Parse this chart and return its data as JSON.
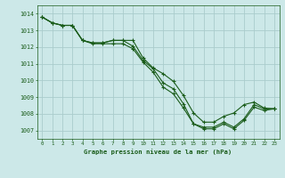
{
  "bg_color": "#cce8e8",
  "grid_color": "#aacccc",
  "line_color": "#1a5c1a",
  "ylim": [
    1006.5,
    1014.5
  ],
  "xlim": [
    -0.5,
    23.5
  ],
  "yticks": [
    1007,
    1008,
    1009,
    1010,
    1011,
    1012,
    1013,
    1014
  ],
  "xticks": [
    0,
    1,
    2,
    3,
    4,
    5,
    6,
    7,
    8,
    9,
    10,
    11,
    12,
    13,
    14,
    15,
    16,
    17,
    18,
    19,
    20,
    21,
    22,
    23
  ],
  "title": "Graphe pression niveau de la mer (hPa)",
  "line1": [
    1013.8,
    1013.45,
    1013.3,
    1013.3,
    1012.4,
    1012.25,
    1012.25,
    1012.4,
    1012.4,
    1012.05,
    1011.2,
    1010.7,
    1009.85,
    1009.5,
    1008.6,
    1007.4,
    1007.2,
    1007.2,
    1007.5,
    1007.2,
    1007.7,
    1008.55,
    1008.3,
    1008.3
  ],
  "line2": [
    1013.8,
    1013.45,
    1013.3,
    1013.3,
    1012.4,
    1012.25,
    1012.25,
    1012.4,
    1012.4,
    1012.4,
    1011.35,
    1010.75,
    1010.4,
    1009.95,
    1009.1,
    1008.05,
    1007.5,
    1007.5,
    1007.85,
    1008.05,
    1008.55,
    1008.7,
    1008.35,
    1008.3
  ],
  "line3": [
    1013.8,
    1013.45,
    1013.3,
    1013.3,
    1012.4,
    1012.2,
    1012.2,
    1012.2,
    1012.2,
    1011.9,
    1011.1,
    1010.5,
    1009.6,
    1009.2,
    1008.35,
    1007.4,
    1007.1,
    1007.1,
    1007.4,
    1007.1,
    1007.6,
    1008.4,
    1008.2,
    1008.3
  ]
}
